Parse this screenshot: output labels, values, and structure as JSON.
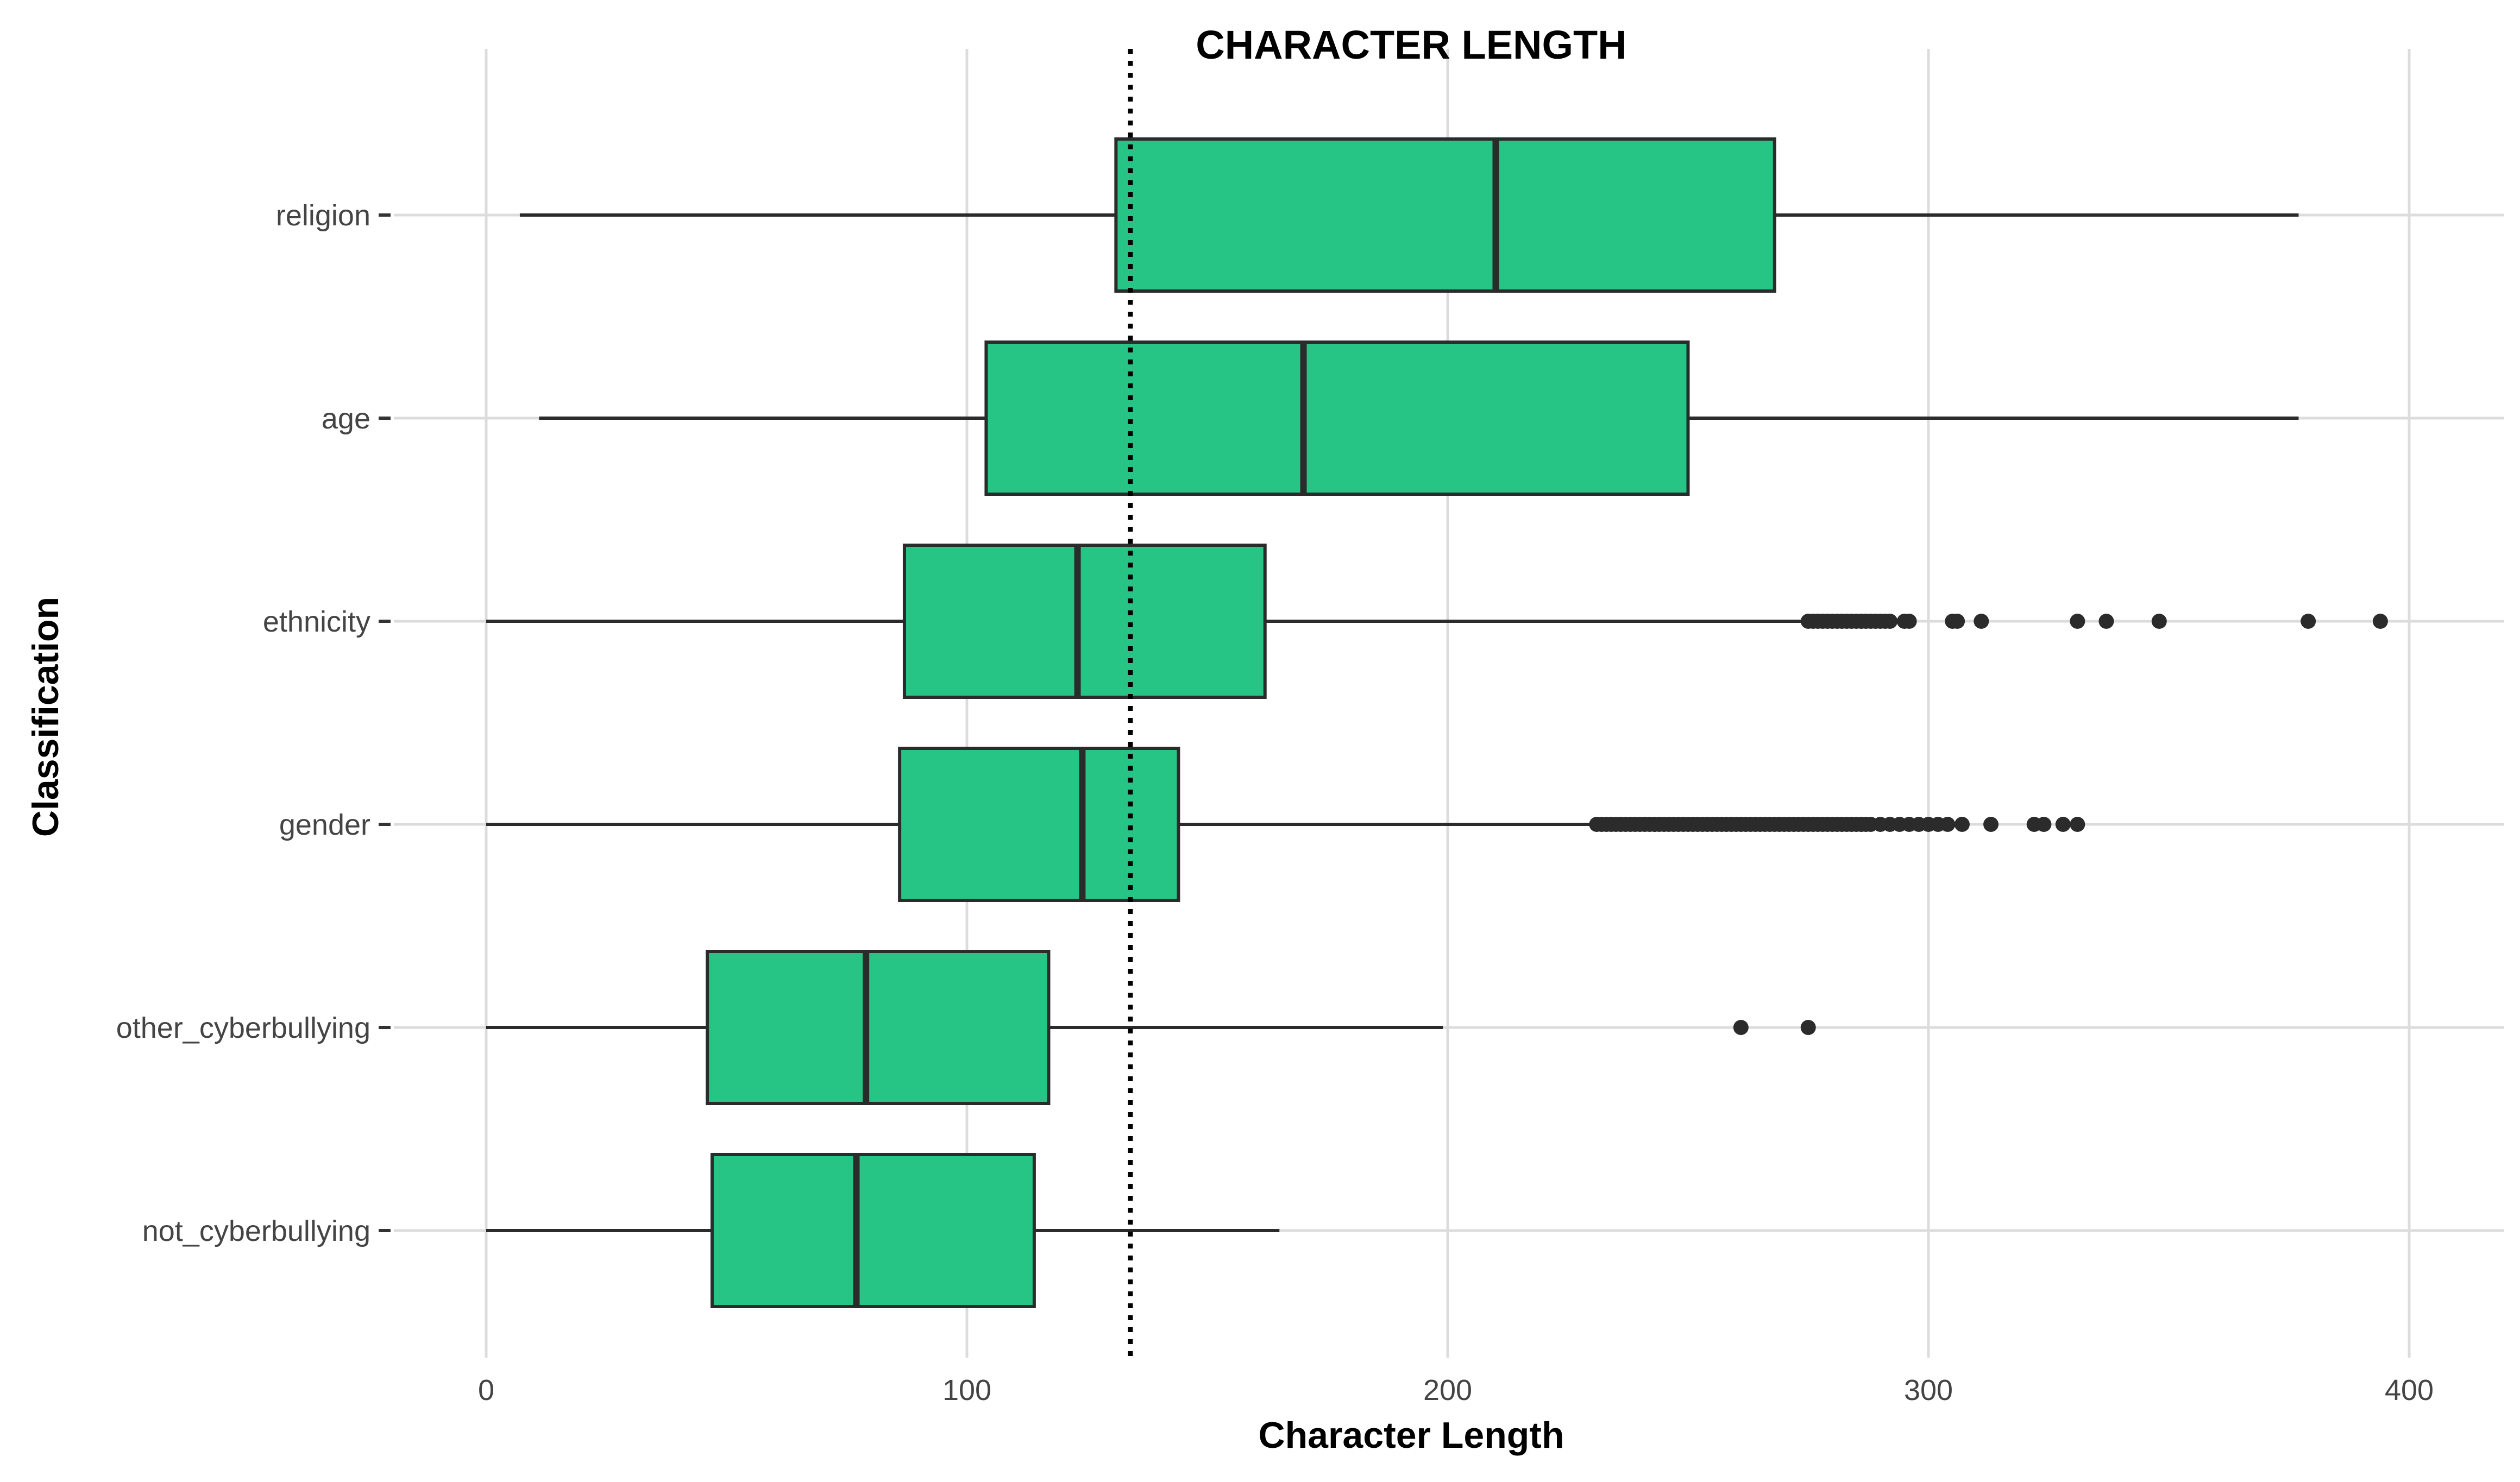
{
  "chart_data": {
    "type": "boxplot",
    "orientation": "horizontal",
    "title": "CHARACTER LENGTH",
    "xlabel": "Character Length",
    "ylabel": "Classification",
    "xlim": [
      -20,
      420
    ],
    "xticks": [
      0,
      100,
      200,
      300,
      400
    ],
    "grid": true,
    "box_color": "#26C485",
    "line_color": "#2b2b2b",
    "reference_line": {
      "x": 134,
      "style": "dotted"
    },
    "categories": [
      "religion",
      "age",
      "ethnicity",
      "gender",
      "other_cyberbullying",
      "not_cyberbullying"
    ],
    "boxes": [
      {
        "category": "religion",
        "whisker_low": 7,
        "q1": 131,
        "median": 210,
        "q3": 268,
        "whisker_high": 377,
        "outliers": []
      },
      {
        "category": "age",
        "whisker_low": 11,
        "q1": 104,
        "median": 170,
        "q3": 250,
        "whisker_high": 377,
        "outliers": []
      },
      {
        "category": "ethnicity",
        "whisker_low": 0,
        "q1": 87,
        "median": 123,
        "q3": 162,
        "whisker_high": 275,
        "outliers": [
          275,
          276,
          277,
          278,
          279,
          280,
          281,
          282,
          283,
          284,
          285,
          286,
          287,
          288,
          289,
          290,
          291,
          292,
          295,
          296,
          305,
          306,
          311,
          331,
          337,
          348,
          379,
          394
        ]
      },
      {
        "category": "gender",
        "whisker_low": 0,
        "q1": 86,
        "median": 124,
        "q3": 144,
        "whisker_high": 231,
        "outliers": [
          231,
          232,
          233,
          234,
          235,
          236,
          237,
          238,
          239,
          240,
          241,
          242,
          243,
          244,
          245,
          246,
          247,
          248,
          249,
          250,
          251,
          252,
          253,
          254,
          255,
          256,
          257,
          258,
          259,
          260,
          261,
          262,
          263,
          264,
          265,
          266,
          267,
          268,
          269,
          270,
          271,
          272,
          273,
          274,
          275,
          276,
          277,
          278,
          279,
          280,
          281,
          282,
          283,
          284,
          285,
          286,
          287,
          288,
          290,
          292,
          294,
          296,
          298,
          300,
          302,
          304,
          307,
          313,
          322,
          324,
          328,
          331
        ]
      },
      {
        "category": "other_cyberbullying",
        "whisker_low": 0,
        "q1": 46,
        "median": 79,
        "q3": 117,
        "whisker_high": 199,
        "outliers": [
          261,
          275
        ]
      },
      {
        "category": "not_cyberbullying",
        "whisker_low": 0,
        "q1": 47,
        "median": 77,
        "q3": 114,
        "whisker_high": 165,
        "outliers": []
      }
    ]
  }
}
